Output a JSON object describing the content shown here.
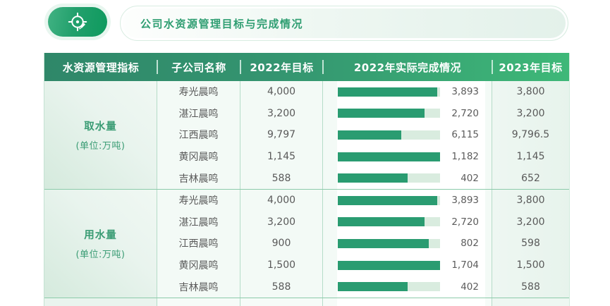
{
  "header": {
    "icon": "target-edit-icon",
    "title": "公司水资源管理目标与完成情况"
  },
  "table": {
    "columns": [
      "水资源管理指标",
      "子公司名称",
      "2022年目标",
      "2022年实际完成情况",
      "2023年目标"
    ],
    "groups": [
      {
        "indicator": "取水量",
        "unit": "(单位:万吨)",
        "rows": [
          {
            "company": "寿光晨鸣",
            "target_2022": "4,000",
            "actual_2022": "3,893",
            "bar_pct": 97.3,
            "target_2023": "3,800"
          },
          {
            "company": "湛江晨鸣",
            "target_2022": "3,200",
            "actual_2022": "2,720",
            "bar_pct": 85.0,
            "target_2023": "3,200"
          },
          {
            "company": "江西晨鸣",
            "target_2022": "9,797",
            "actual_2022": "6,115",
            "bar_pct": 62.4,
            "target_2023": "9,796.5"
          },
          {
            "company": "黄冈晨鸣",
            "target_2022": "1,145",
            "actual_2022": "1,182",
            "bar_pct": 100,
            "target_2023": "1,145"
          },
          {
            "company": "吉林晨鸣",
            "target_2022": "588",
            "actual_2022": "402",
            "bar_pct": 68.4,
            "target_2023": "652"
          }
        ]
      },
      {
        "indicator": "用水量",
        "unit": "(单位:万吨)",
        "rows": [
          {
            "company": "寿光晨鸣",
            "target_2022": "4,000",
            "actual_2022": "3,893",
            "bar_pct": 97.3,
            "target_2023": "3,800"
          },
          {
            "company": "湛江晨鸣",
            "target_2022": "3,200",
            "actual_2022": "2,720",
            "bar_pct": 85.0,
            "target_2023": "3,200"
          },
          {
            "company": "江西晨鸣",
            "target_2022": "900",
            "actual_2022": "802",
            "bar_pct": 89.1,
            "target_2023": "598"
          },
          {
            "company": "黄冈晨鸣",
            "target_2022": "1,500",
            "actual_2022": "1,704",
            "bar_pct": 100,
            "target_2023": "1,500"
          },
          {
            "company": "吉林晨鸣",
            "target_2022": "588",
            "actual_2022": "402",
            "bar_pct": 68.4,
            "target_2023": "588"
          }
        ]
      }
    ]
  },
  "chart_data": {
    "type": "table",
    "title": "公司水资源管理目标与完成情况",
    "columns": [
      "水资源管理指标",
      "子公司名称",
      "2022年目标",
      "2022年实际完成情况",
      "2023年目标"
    ],
    "rows": [
      [
        "取水量(单位:万吨)",
        "寿光晨鸣",
        4000,
        3893,
        3800
      ],
      [
        "取水量(单位:万吨)",
        "湛江晨鸣",
        3200,
        2720,
        3200
      ],
      [
        "取水量(单位:万吨)",
        "江西晨鸣",
        9797,
        6115,
        9796.5
      ],
      [
        "取水量(单位:万吨)",
        "黄冈晨鸣",
        1145,
        1182,
        1145
      ],
      [
        "取水量(单位:万吨)",
        "吉林晨鸣",
        588,
        402,
        652
      ],
      [
        "用水量(单位:万吨)",
        "寿光晨鸣",
        4000,
        3893,
        3800
      ],
      [
        "用水量(单位:万吨)",
        "湛江晨鸣",
        3200,
        2720,
        3200
      ],
      [
        "用水量(单位:万吨)",
        "江西晨鸣",
        900,
        802,
        598
      ],
      [
        "用水量(单位:万吨)",
        "黄冈晨鸣",
        1500,
        1704,
        1500
      ],
      [
        "用水量(单位:万吨)",
        "吉林晨鸣",
        588,
        402,
        588
      ]
    ],
    "notes": "2022年实际完成情况 column rendered as horizontal progress bars; fill = actual/target capped at 100%"
  },
  "colors": {
    "header_gradient_left": "#2f8769",
    "header_gradient_right": "#3eb878",
    "bar_fill": "#2a9c71",
    "bar_track": "#d9ecdf",
    "accent_green": "#2f9e72",
    "group_label_green": "#3a9c74",
    "body_text": "#595959"
  }
}
